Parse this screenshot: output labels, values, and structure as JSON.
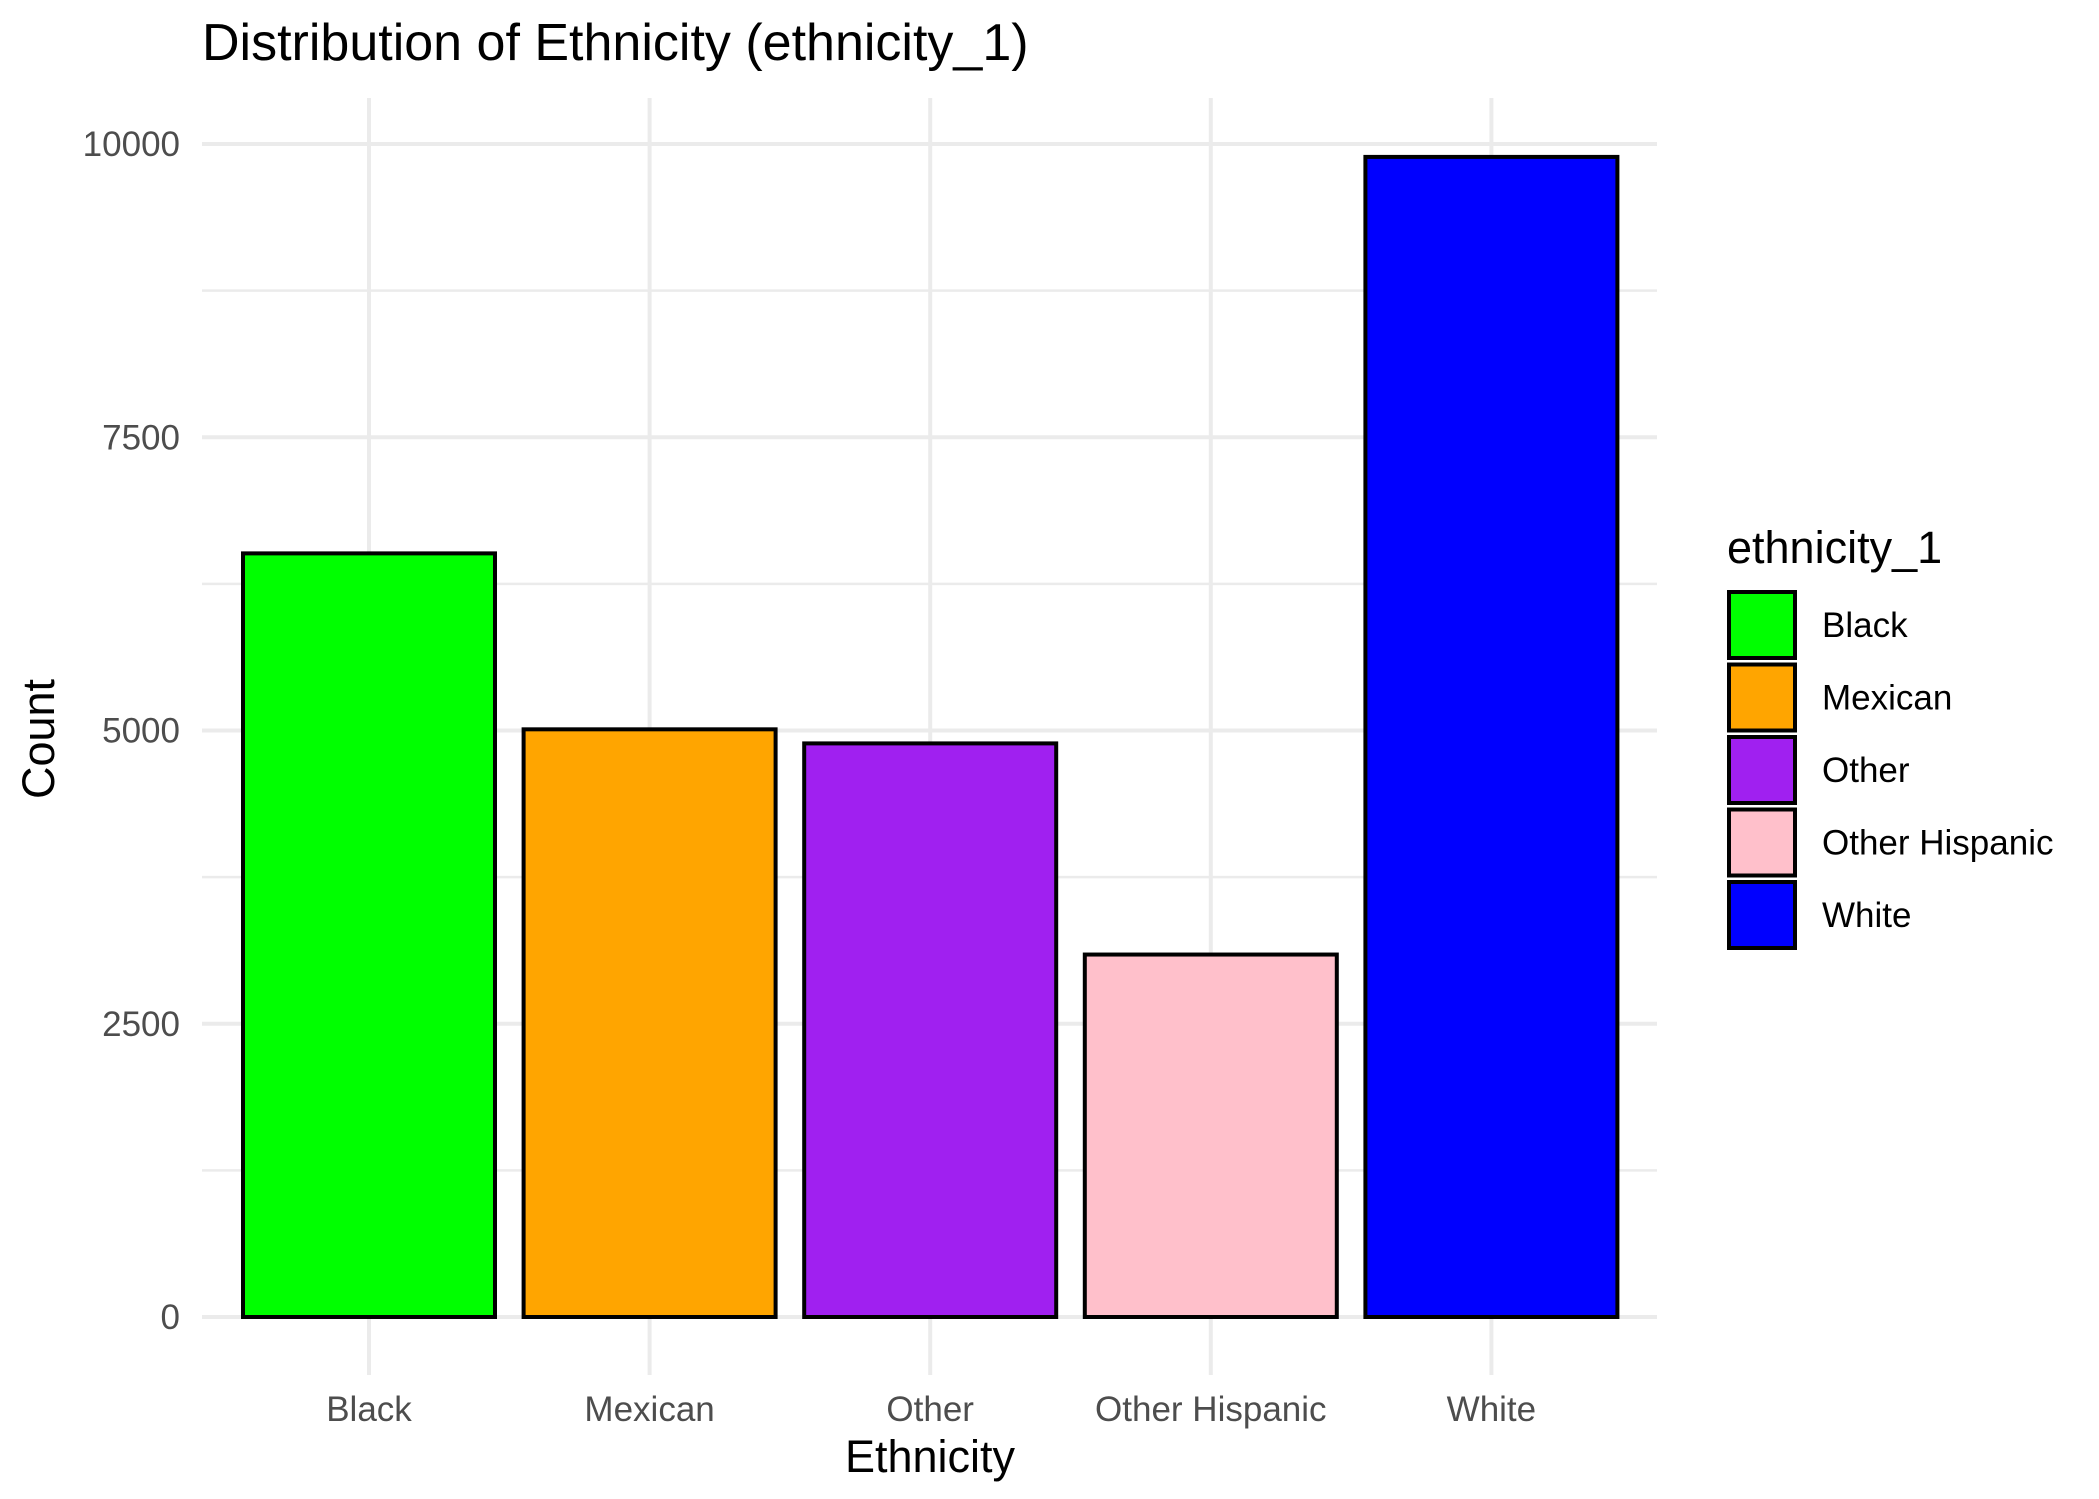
{
  "chart_data": {
    "type": "bar",
    "title": "Distribution of Ethnicity (ethnicity_1)",
    "xlabel": "Ethnicity",
    "ylabel": "Count",
    "categories": [
      "Black",
      "Mexican",
      "Other",
      "Other Hispanic",
      "White"
    ],
    "values": [
      6510,
      5010,
      4890,
      3090,
      9890
    ],
    "colors": [
      "#00ff00",
      "#ffa500",
      "#a020f0",
      "#ffc0cb",
      "#0000ff"
    ],
    "ylim": [
      0,
      10000
    ],
    "y_ticks": [
      0,
      2500,
      5000,
      7500,
      10000
    ],
    "y_tick_labels": [
      "0",
      "2500",
      "5000",
      "7500",
      "10000"
    ],
    "grid": true,
    "legend": {
      "title": "ethnicity_1",
      "position": "right",
      "entries": [
        "Black",
        "Mexican",
        "Other",
        "Other Hispanic",
        "White"
      ]
    }
  }
}
